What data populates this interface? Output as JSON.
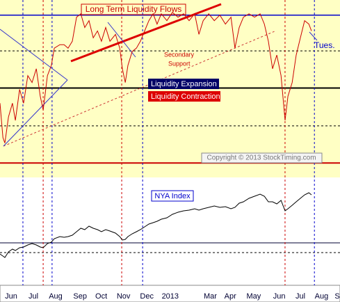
{
  "chart_data": {
    "type": "line",
    "x": [
      0,
      0.13,
      0.22,
      0.38,
      0.56,
      0.69,
      0.88,
      1.06,
      1.25,
      1.44,
      1.63,
      1.81,
      1.94,
      2.13,
      2.31,
      2.44,
      2.69,
      2.88,
      3.06,
      3.25,
      3.44,
      3.63,
      3.81,
      4,
      4.19,
      4.38,
      4.56,
      4.75,
      4.94,
      5.19,
      5.38,
      5.5,
      5.63,
      5.75,
      5.94,
      6.13,
      6.31,
      6.5,
      6.69,
      6.88,
      7.06,
      7.25,
      7.5,
      7.75,
      8,
      8.25,
      8.5,
      8.75,
      8.94,
      9.13,
      9.38,
      9.63,
      9.88,
      10.13,
      10.38,
      10.56,
      10.75,
      10.94,
      11.19,
      11.44,
      11.69,
      11.88,
      12.06,
      12.25,
      12.44,
      12.63,
      12.81,
      12.94,
      13.13,
      13.31,
      13.5,
      13.69,
      13.88,
      14
    ],
    "series": [
      {
        "name": "Long Term Liquidity Flows",
        "color": "#cc0000",
        "values": [
          108,
          58,
          50,
          88,
          108,
          83,
          128,
          108,
          148,
          138,
          158,
          118,
          98,
          148,
          163,
          188,
          193,
          193,
          188,
          198,
          233,
          238,
          218,
          228,
          203,
          213,
          198,
          218,
          198,
          208,
          188,
          158,
          138,
          163,
          183,
          188,
          198,
          213,
          228,
          238,
          223,
          238,
          228,
          240,
          233,
          238,
          228,
          238,
          208,
          228,
          238,
          228,
          236,
          223,
          233,
          188,
          218,
          233,
          238,
          233,
          238,
          223,
          198,
          158,
          178,
          148,
          83,
          118,
          138,
          178,
          203,
          228,
          223,
          213
        ]
      },
      {
        "name": "NYA Index",
        "color": "#000000",
        "axis": "y2",
        "values": [
          45,
          42,
          40,
          48,
          52,
          50,
          54,
          55,
          58,
          60,
          58,
          55,
          54,
          60,
          62,
          67,
          70,
          69,
          70,
          72,
          77,
          82,
          80,
          85,
          82,
          80,
          77,
          80,
          78,
          75,
          70,
          65,
          66,
          70,
          74,
          77,
          80,
          84,
          88,
          90,
          92,
          95,
          97,
          102,
          105,
          107,
          108,
          110,
          108,
          110,
          112,
          114,
          112,
          113,
          110,
          112,
          118,
          120,
          125,
          128,
          131,
          128,
          120,
          120,
          117,
          122,
          107,
          110,
          115,
          120,
          125,
          130,
          133,
          130
        ]
      }
    ],
    "xlim": [
      0,
      15.28
    ],
    "ylim": [
      0,
      258
    ],
    "y2lim": [
      0,
      152
    ],
    "xticks": [
      {
        "value": 0.5,
        "label": "Jun"
      },
      {
        "value": 1.5,
        "label": "Jul"
      },
      {
        "value": 2.5,
        "label": "Aug"
      },
      {
        "value": 3.6,
        "label": "Sep"
      },
      {
        "value": 4.55,
        "label": "Oct"
      },
      {
        "value": 5.55,
        "label": "Nov"
      },
      {
        "value": 6.6,
        "label": "Dec"
      },
      {
        "value": 7.65,
        "label": "2013"
      },
      {
        "value": 9.45,
        "label": "Mar"
      },
      {
        "value": 10.35,
        "label": "Apr"
      },
      {
        "value": 11.4,
        "label": "May"
      },
      {
        "value": 12.55,
        "label": "Jun"
      },
      {
        "value": 13.5,
        "label": "Jul"
      },
      {
        "value": 14.45,
        "label": "Aug"
      },
      {
        "value": 15.2,
        "label": "S"
      }
    ],
    "hlines": [
      {
        "value": 236,
        "color": "#0000cc",
        "width": 1.5
      },
      {
        "value": 184,
        "color": "#000000",
        "dash": true
      },
      {
        "value": 130,
        "color": "#000000",
        "width": 2
      },
      {
        "value": 75,
        "color": "#000000",
        "dash": true
      },
      {
        "value": 21,
        "color": "#cc0000",
        "width": 2
      }
    ],
    "y2hlines": [
      {
        "value": 61,
        "color": "#000033",
        "width": 1
      },
      {
        "value": 47,
        "color": "#000000",
        "dash": true
      }
    ],
    "vlines": [
      {
        "x": 1.03,
        "color": "#0000cc"
      },
      {
        "x": 1.94,
        "color": "#cc0000"
      },
      {
        "x": 2.34,
        "color": "#0000cc"
      },
      {
        "x": 5.47,
        "color": "#cc0000"
      },
      {
        "x": 6.41,
        "color": "#0000cc"
      },
      {
        "x": 12.81,
        "color": "#cc0000"
      },
      {
        "x": 14.13,
        "color": "#0000cc"
      }
    ],
    "zone_labels": [
      "Liquidity Expansion",
      "Liquidity Contraction"
    ],
    "annotations": [
      "Tues.",
      "Secondary",
      "Support"
    ],
    "source": "Copyright © 2013 StockTiming.com"
  }
}
